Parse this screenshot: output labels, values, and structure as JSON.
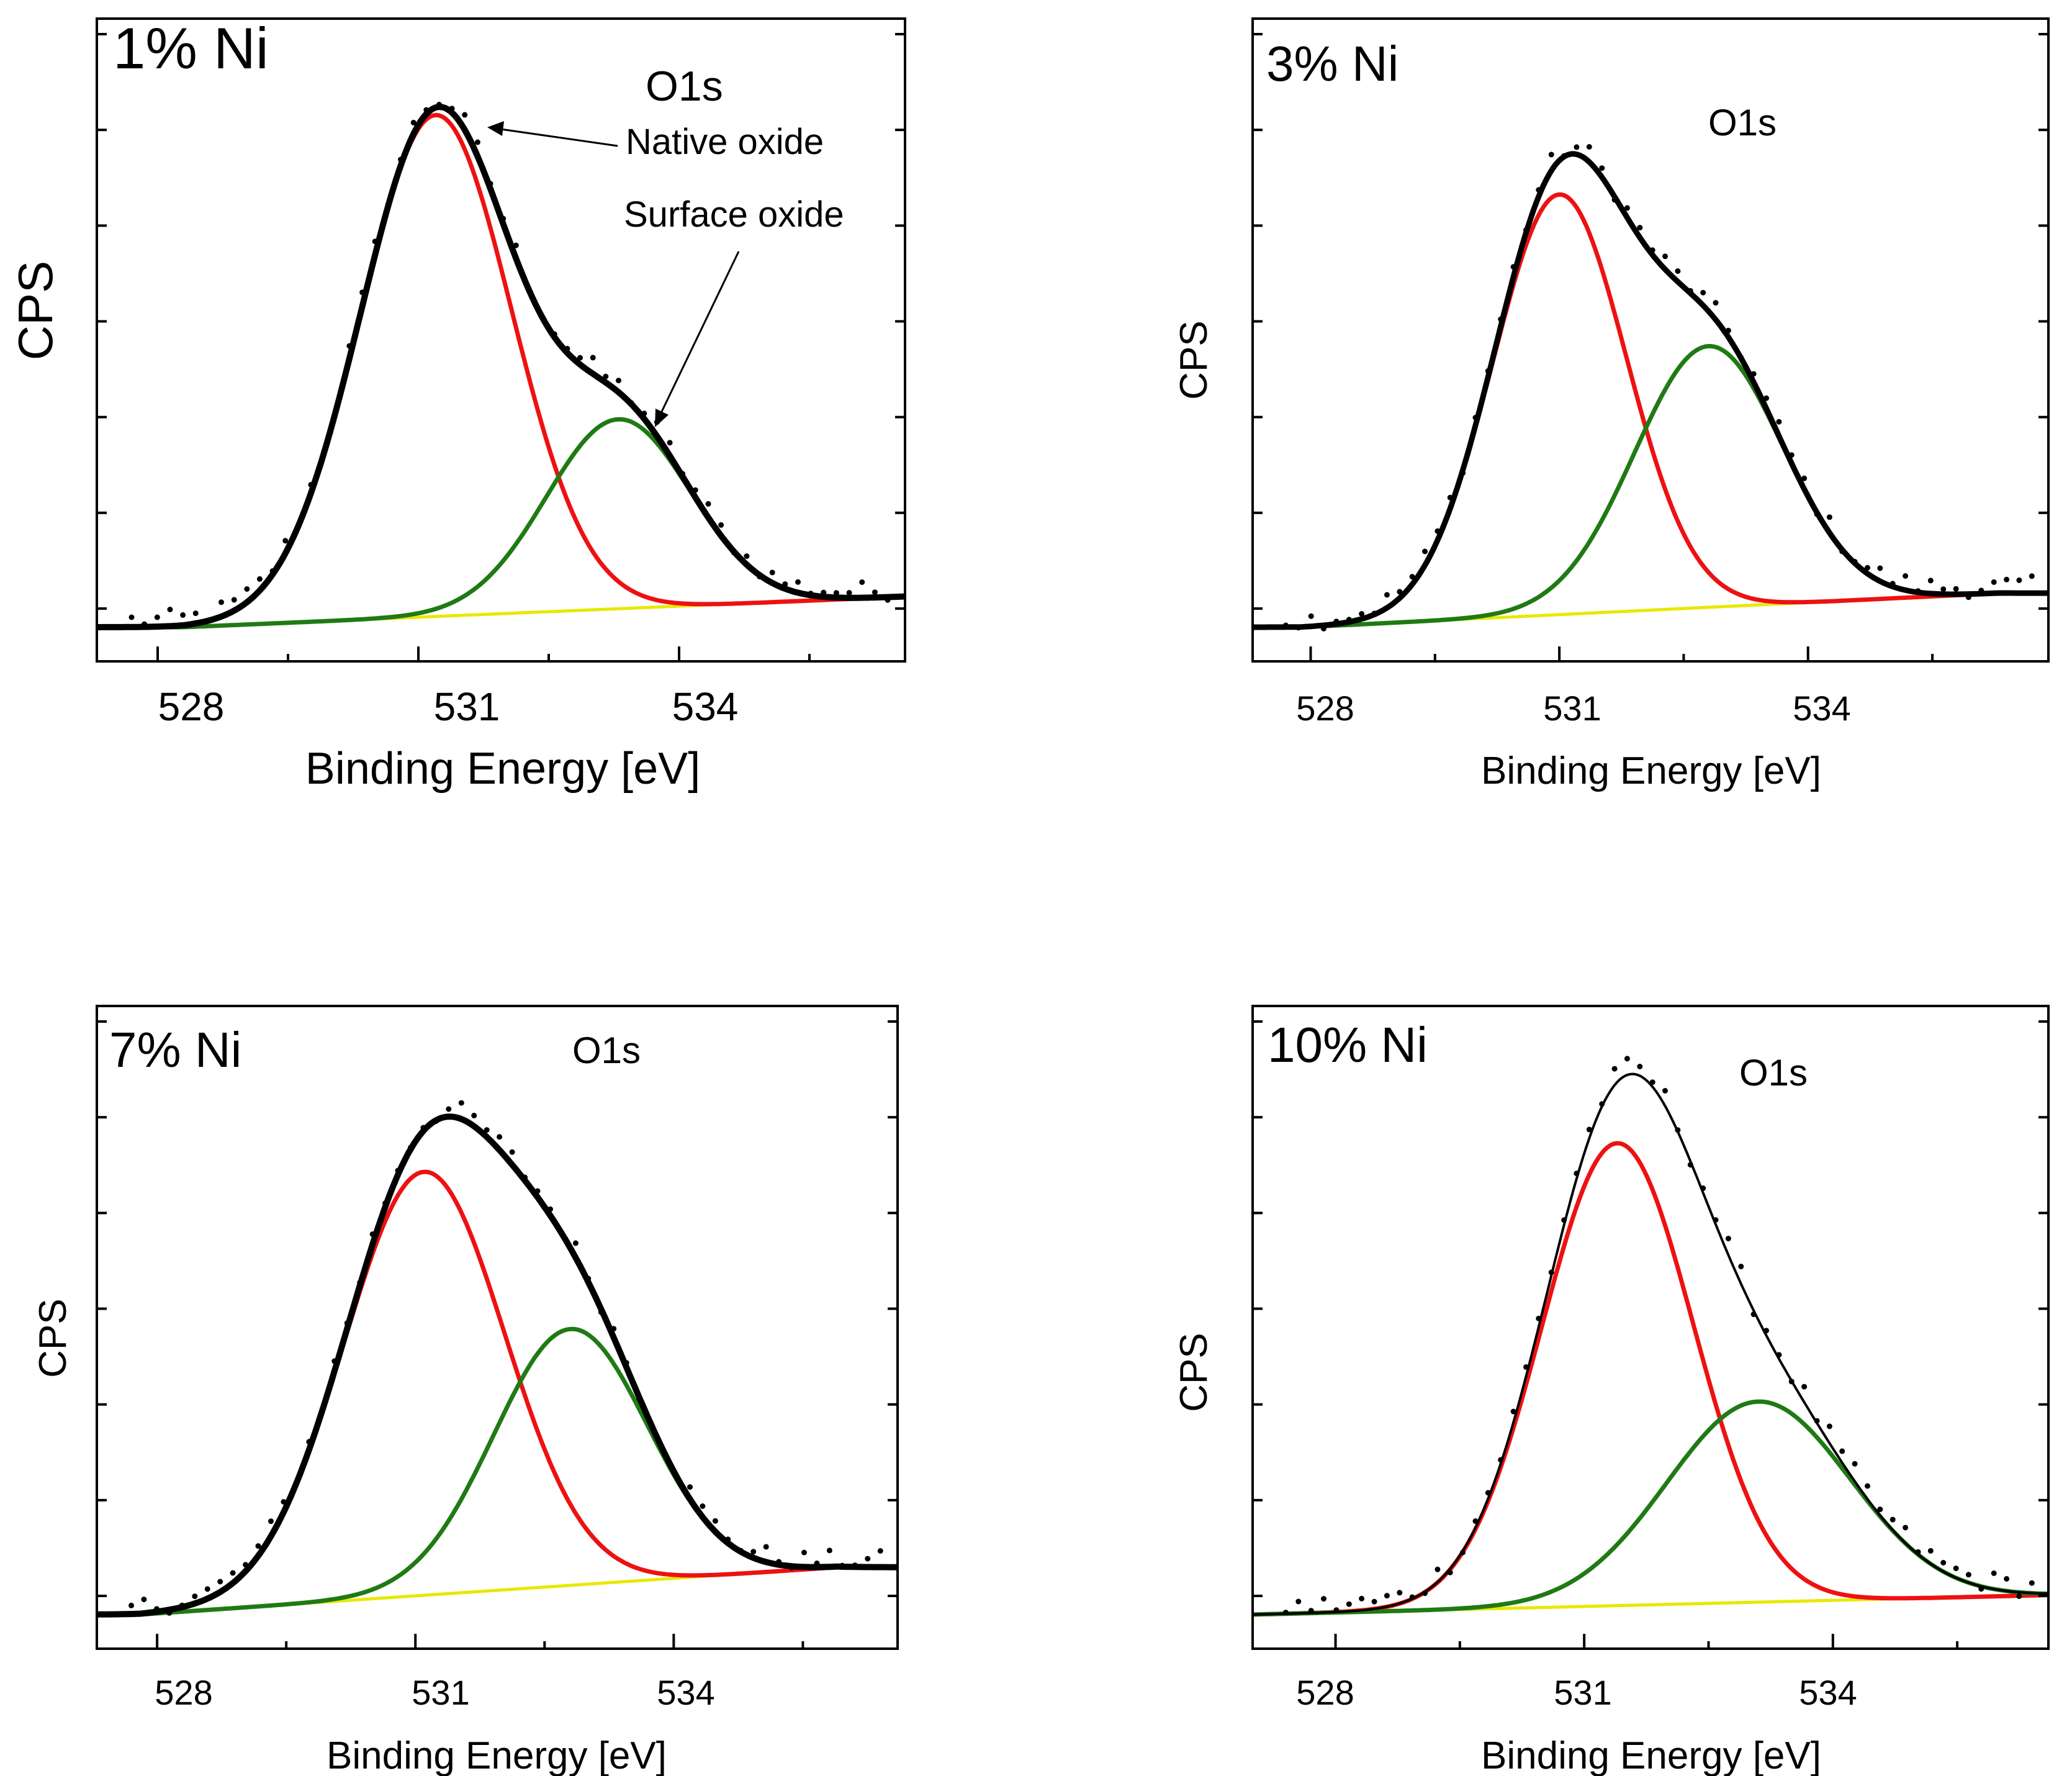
{
  "figure": {
    "colors": {
      "data_points": "#000000",
      "envelope": "#000000",
      "native_oxide": "#ee1111",
      "surface_oxide": "#1f7a14",
      "background": "#e8e800"
    }
  },
  "chart_data": [
    {
      "type": "line",
      "panel_label": "1% Ni",
      "peak_label": "O1s",
      "annotations": [
        "Native oxide",
        "Surface oxide"
      ],
      "xlabel": "Binding Energy [eV]",
      "ylabel": "CPS",
      "xlim": [
        527.3,
        536.6
      ],
      "ylim": [
        0,
        1.07
      ],
      "xticks": [
        528,
        531,
        534
      ],
      "grid": false,
      "series": [
        {
          "name": "Native oxide",
          "type": "gaussian",
          "center": 531.2,
          "fwhm": 2.05,
          "height": 0.9
        },
        {
          "name": "Surface oxide",
          "type": "gaussian",
          "center": 533.3,
          "fwhm": 1.95,
          "height": 0.34
        },
        {
          "name": "Background",
          "type": "linear",
          "x": [
            528.3,
            536.6
          ],
          "y": [
            0.0,
            0.055
          ]
        },
        {
          "name": "Fit envelope",
          "type": "sum"
        },
        {
          "name": "Measured",
          "type": "points",
          "noise": 0.018
        }
      ]
    },
    {
      "type": "line",
      "panel_label": "3% Ni",
      "peak_label": "O1s",
      "xlabel": "Binding Energy [eV]",
      "ylabel": "CPS",
      "xlim": [
        527.3,
        536.9
      ],
      "ylim": [
        0,
        1.05
      ],
      "xticks": [
        528,
        531,
        534
      ],
      "grid": false,
      "series": [
        {
          "name": "Native oxide",
          "type": "gaussian",
          "center": 531.0,
          "fwhm": 1.9,
          "height": 0.74
        },
        {
          "name": "Surface oxide",
          "type": "gaussian",
          "center": 532.8,
          "fwhm": 2.1,
          "height": 0.46
        },
        {
          "name": "Background",
          "type": "linear",
          "x": [
            527.9,
            536.3
          ],
          "y": [
            0.0,
            0.06
          ]
        },
        {
          "name": "Fit envelope",
          "type": "sum"
        },
        {
          "name": "Measured",
          "type": "points",
          "noise": 0.018
        }
      ]
    },
    {
      "type": "line",
      "panel_label": "7% Ni",
      "peak_label": "O1s",
      "xlabel": "Binding Energy [eV]",
      "ylabel": "CPS",
      "xlim": [
        527.3,
        536.6
      ],
      "ylim": [
        0,
        1.07
      ],
      "xticks": [
        528,
        531,
        534
      ],
      "grid": false,
      "series": [
        {
          "name": "Native oxide",
          "type": "gaussian",
          "center": 531.1,
          "fwhm": 2.2,
          "height": 0.76
        },
        {
          "name": "Surface oxide",
          "type": "gaussian",
          "center": 532.8,
          "fwhm": 2.1,
          "height": 0.46
        },
        {
          "name": "Background",
          "type": "linear",
          "x": [
            527.8,
            535.9
          ],
          "y": [
            0.0,
            0.085
          ]
        },
        {
          "name": "Fit envelope",
          "type": "sum"
        },
        {
          "name": "Measured",
          "type": "points",
          "noise": 0.018
        }
      ]
    },
    {
      "type": "line",
      "panel_label": "10% Ni",
      "peak_label": "O1s",
      "xlabel": "Binding Energy [eV]",
      "ylabel": "CPS",
      "xlim": [
        527.0,
        536.6
      ],
      "ylim": [
        0,
        1.07
      ],
      "xticks": [
        528,
        531,
        534
      ],
      "grid": false,
      "series": [
        {
          "name": "Native oxide",
          "type": "gaussian",
          "center": 531.4,
          "fwhm": 2.15,
          "height": 0.83
        },
        {
          "name": "Surface oxide",
          "type": "gaussian",
          "center": 533.1,
          "fwhm": 2.6,
          "height": 0.36
        },
        {
          "name": "Background",
          "type": "linear",
          "x": [
            527.0,
            536.6
          ],
          "y": [
            0.0,
            0.035
          ]
        },
        {
          "name": "Fit envelope",
          "type": "sum"
        },
        {
          "name": "Measured",
          "type": "points",
          "noise": 0.02
        }
      ]
    }
  ]
}
